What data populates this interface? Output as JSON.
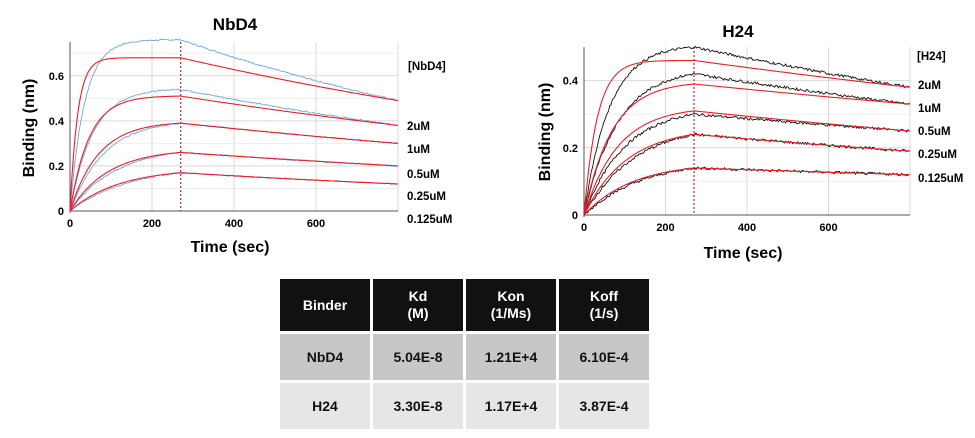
{
  "charts": [
    {
      "title": "NbD4",
      "legend_title": "[NbD4]",
      "ylabel": "Binding (nm)",
      "xlabel": "Time (sec)",
      "yticks": [
        "0",
        "0.2",
        "0.4",
        "0.6"
      ],
      "xticks": [
        "0",
        "200",
        "400",
        "600"
      ],
      "concentrations": [
        "2uM",
        "1uM",
        "0.5uM",
        "0.25uM",
        "0.125uM"
      ]
    },
    {
      "title": "H24",
      "legend_title": "[H24]",
      "ylabel": "Binding (nm)",
      "xlabel": "Time (sec)",
      "yticks": [
        "0",
        "0.2",
        "0.4"
      ],
      "xticks": [
        "0",
        "200",
        "400",
        "600"
      ],
      "concentrations": [
        "2uM",
        "1uM",
        "0.5uM",
        "0.25uM",
        "0.125uM"
      ]
    }
  ],
  "chart_data": [
    {
      "type": "line",
      "title": "NbD4",
      "xlabel": "Time (sec)",
      "ylabel": "Binding (nm)",
      "xlim": [
        0,
        800
      ],
      "ylim": [
        0,
        0.75
      ],
      "association_end": 270,
      "grid": true,
      "legend": "right",
      "colors": {
        "data": "#6fa8dc",
        "fit": "#e8202a",
        "divider": "#c0282e"
      },
      "series": [
        {
          "name": "2uM",
          "peak_data": 0.76,
          "peak_fit": 0.68,
          "end_value": 0.49
        },
        {
          "name": "1uM",
          "peak_data": 0.54,
          "peak_fit": 0.51,
          "end_value": 0.38
        },
        {
          "name": "0.5uM",
          "peak_data": 0.39,
          "peak_fit": 0.39,
          "end_value": 0.3
        },
        {
          "name": "0.25uM",
          "peak_data": 0.26,
          "peak_fit": 0.26,
          "end_value": 0.2
        },
        {
          "name": "0.125uM",
          "peak_data": 0.17,
          "peak_fit": 0.17,
          "end_value": 0.12
        }
      ]
    },
    {
      "type": "line",
      "title": "H24",
      "xlabel": "Time (sec)",
      "ylabel": "Binding (nm)",
      "xlim": [
        0,
        800
      ],
      "ylim": [
        0,
        0.5
      ],
      "association_end": 270,
      "grid": true,
      "legend": "right",
      "colors": {
        "data": "#111111",
        "fit": "#e8202a",
        "divider": "#c0282e"
      },
      "series": [
        {
          "name": "2uM",
          "peak_data": 0.5,
          "peak_fit": 0.46,
          "end_value": 0.38
        },
        {
          "name": "1uM",
          "peak_data": 0.42,
          "peak_fit": 0.39,
          "end_value": 0.33
        },
        {
          "name": "0.5uM",
          "peak_data": 0.3,
          "peak_fit": 0.31,
          "end_value": 0.25
        },
        {
          "name": "0.25uM",
          "peak_data": 0.24,
          "peak_fit": 0.24,
          "end_value": 0.19
        },
        {
          "name": "0.125uM",
          "peak_data": 0.14,
          "peak_fit": 0.14,
          "end_value": 0.12
        }
      ]
    },
    {
      "type": "table",
      "columns": [
        "Binder",
        "Kd\n(M)",
        "Kon\n(1/Ms)",
        "Koff\n(1/s)"
      ],
      "rows": [
        [
          "NbD4",
          "5.04E-8",
          "1.21E+4",
          "6.10E-4"
        ],
        [
          "H24",
          "3.30E-8",
          "1.17E+4",
          "3.87E-4"
        ]
      ]
    }
  ],
  "table": {
    "headers": [
      {
        "line1": "Binder",
        "line2": ""
      },
      {
        "line1": "Kd",
        "line2": "(M)"
      },
      {
        "line1": "Kon",
        "line2": "(1/Ms)"
      },
      {
        "line1": "Koff",
        "line2": "(1/s)"
      }
    ],
    "rows": [
      [
        "NbD4",
        "5.04E-8",
        "1.21E+4",
        "6.10E-4"
      ],
      [
        "H24",
        "3.30E-8",
        "1.17E+4",
        "3.87E-4"
      ]
    ]
  }
}
